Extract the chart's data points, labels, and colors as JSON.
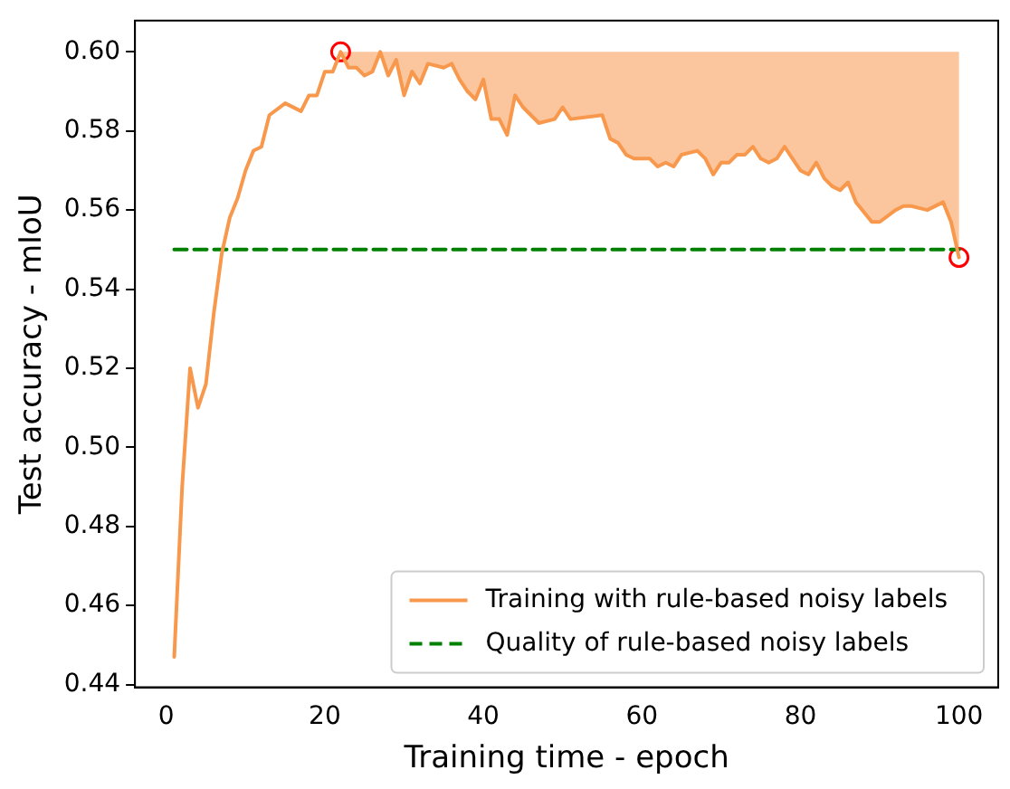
{
  "chart_data": {
    "type": "line",
    "xlabel": "Training time - epoch",
    "ylabel": "Test accuracy - mIoU",
    "xlim": [
      -3.95,
      104.95
    ],
    "xticks": [
      0,
      20,
      40,
      60,
      80,
      100
    ],
    "ylim": [
      0.4393,
      0.6079
    ],
    "yticks": [
      0.44,
      0.46,
      0.48,
      {
        "value": 0.5,
        "label": "0.50"
      },
      0.52,
      0.54,
      0.56,
      0.58,
      {
        "value": 0.6,
        "label": "0.60"
      }
    ],
    "grid": false,
    "legend": "bottom right",
    "series": [
      {
        "name": "Training with rule-based noisy labels",
        "color": "#f8984d",
        "marker": "none",
        "line_style": "solid",
        "x": [
          1,
          2,
          3,
          4,
          5,
          6,
          7,
          8,
          9,
          10,
          11,
          12,
          13,
          15,
          17,
          18,
          19,
          20,
          21,
          22,
          23,
          24,
          25,
          26,
          27,
          28,
          29,
          30,
          31,
          32,
          33,
          35,
          36,
          37,
          38,
          39,
          40,
          41,
          42,
          43,
          44,
          45,
          47,
          49,
          50,
          51,
          55,
          56,
          57,
          58,
          59,
          61,
          62,
          63,
          64,
          65,
          67,
          68,
          69,
          70,
          71,
          72,
          73,
          74,
          75,
          76,
          77,
          78,
          79,
          80,
          81,
          82,
          83,
          84,
          85,
          86,
          87,
          89,
          90,
          92,
          93,
          94,
          96,
          98,
          99,
          100
        ],
        "values": [
          0.447,
          0.49,
          0.52,
          0.51,
          0.516,
          0.534,
          0.549,
          0.558,
          0.563,
          0.57,
          0.575,
          0.576,
          0.584,
          0.587,
          0.585,
          0.589,
          0.589,
          0.595,
          0.595,
          0.6,
          0.596,
          0.596,
          0.594,
          0.595,
          0.6,
          0.594,
          0.598,
          0.589,
          0.595,
          0.592,
          0.597,
          0.596,
          0.597,
          0.593,
          0.59,
          0.588,
          0.593,
          0.583,
          0.583,
          0.579,
          0.589,
          0.586,
          0.582,
          0.583,
          0.586,
          0.583,
          0.584,
          0.578,
          0.577,
          0.574,
          0.573,
          0.573,
          0.571,
          0.572,
          0.571,
          0.574,
          0.575,
          0.573,
          0.569,
          0.572,
          0.572,
          0.574,
          0.574,
          0.576,
          0.573,
          0.572,
          0.573,
          0.576,
          0.573,
          0.57,
          0.569,
          0.572,
          0.568,
          0.566,
          0.565,
          0.567,
          0.562,
          0.557,
          0.557,
          0.56,
          0.561,
          0.561,
          0.56,
          0.562,
          0.557,
          0.548
        ],
        "lower": [
          null,
          null,
          null,
          null,
          null,
          null,
          null,
          null,
          null,
          null,
          null,
          null,
          null,
          null,
          null,
          null,
          null,
          null,
          null,
          0.6,
          0.596,
          0.596,
          0.594,
          0.595,
          0.6,
          0.594,
          0.598,
          0.589,
          0.595,
          0.592,
          0.597,
          0.596,
          0.597,
          0.593,
          0.59,
          0.588,
          0.593,
          0.583,
          0.583,
          0.579,
          0.589,
          0.586,
          0.582,
          0.583,
          0.586,
          0.583,
          0.584,
          0.578,
          0.577,
          0.574,
          0.573,
          0.573,
          0.571,
          0.572,
          0.571,
          0.574,
          0.575,
          0.573,
          0.569,
          0.572,
          0.572,
          0.574,
          0.574,
          0.576,
          0.573,
          0.572,
          0.573,
          0.576,
          0.573,
          0.57,
          0.569,
          0.572,
          0.568,
          0.566,
          0.565,
          0.567,
          0.562,
          0.557,
          0.557,
          0.56,
          0.561,
          0.561,
          0.56,
          0.562,
          0.557,
          0.548
        ],
        "upper": [
          null,
          null,
          null,
          null,
          null,
          null,
          null,
          null,
          null,
          null,
          null,
          null,
          null,
          null,
          null,
          null,
          null,
          null,
          null,
          0.6,
          0.6,
          0.6,
          0.6,
          0.6,
          0.6,
          0.6,
          0.6,
          0.6,
          0.6,
          0.6,
          0.6,
          0.6,
          0.6,
          0.6,
          0.6,
          0.6,
          0.6,
          0.6,
          0.6,
          0.6,
          0.6,
          0.6,
          0.6,
          0.6,
          0.6,
          0.6,
          0.6,
          0.6,
          0.6,
          0.6,
          0.6,
          0.6,
          0.6,
          0.6,
          0.6,
          0.6,
          0.6,
          0.6,
          0.6,
          0.6,
          0.6,
          0.6,
          0.6,
          0.6,
          0.6,
          0.6,
          0.6,
          0.6,
          0.6,
          0.6,
          0.6,
          0.6,
          0.6,
          0.6,
          0.6,
          0.6,
          0.6,
          0.6,
          0.6,
          0.6,
          0.6,
          0.6,
          0.6,
          0.6,
          0.6,
          0.6
        ]
      },
      {
        "name": "Quality of rule-based noisy labels",
        "color": "#008000",
        "marker": "none",
        "line_style": "dashed",
        "x": [
          1,
          100
        ],
        "values": [
          0.55,
          0.55
        ]
      },
      {
        "type": "scatter",
        "color": "#ff0000",
        "marker": "circle",
        "x": [
          22,
          100
        ],
        "values": [
          0.6,
          0.548
        ]
      }
    ]
  }
}
